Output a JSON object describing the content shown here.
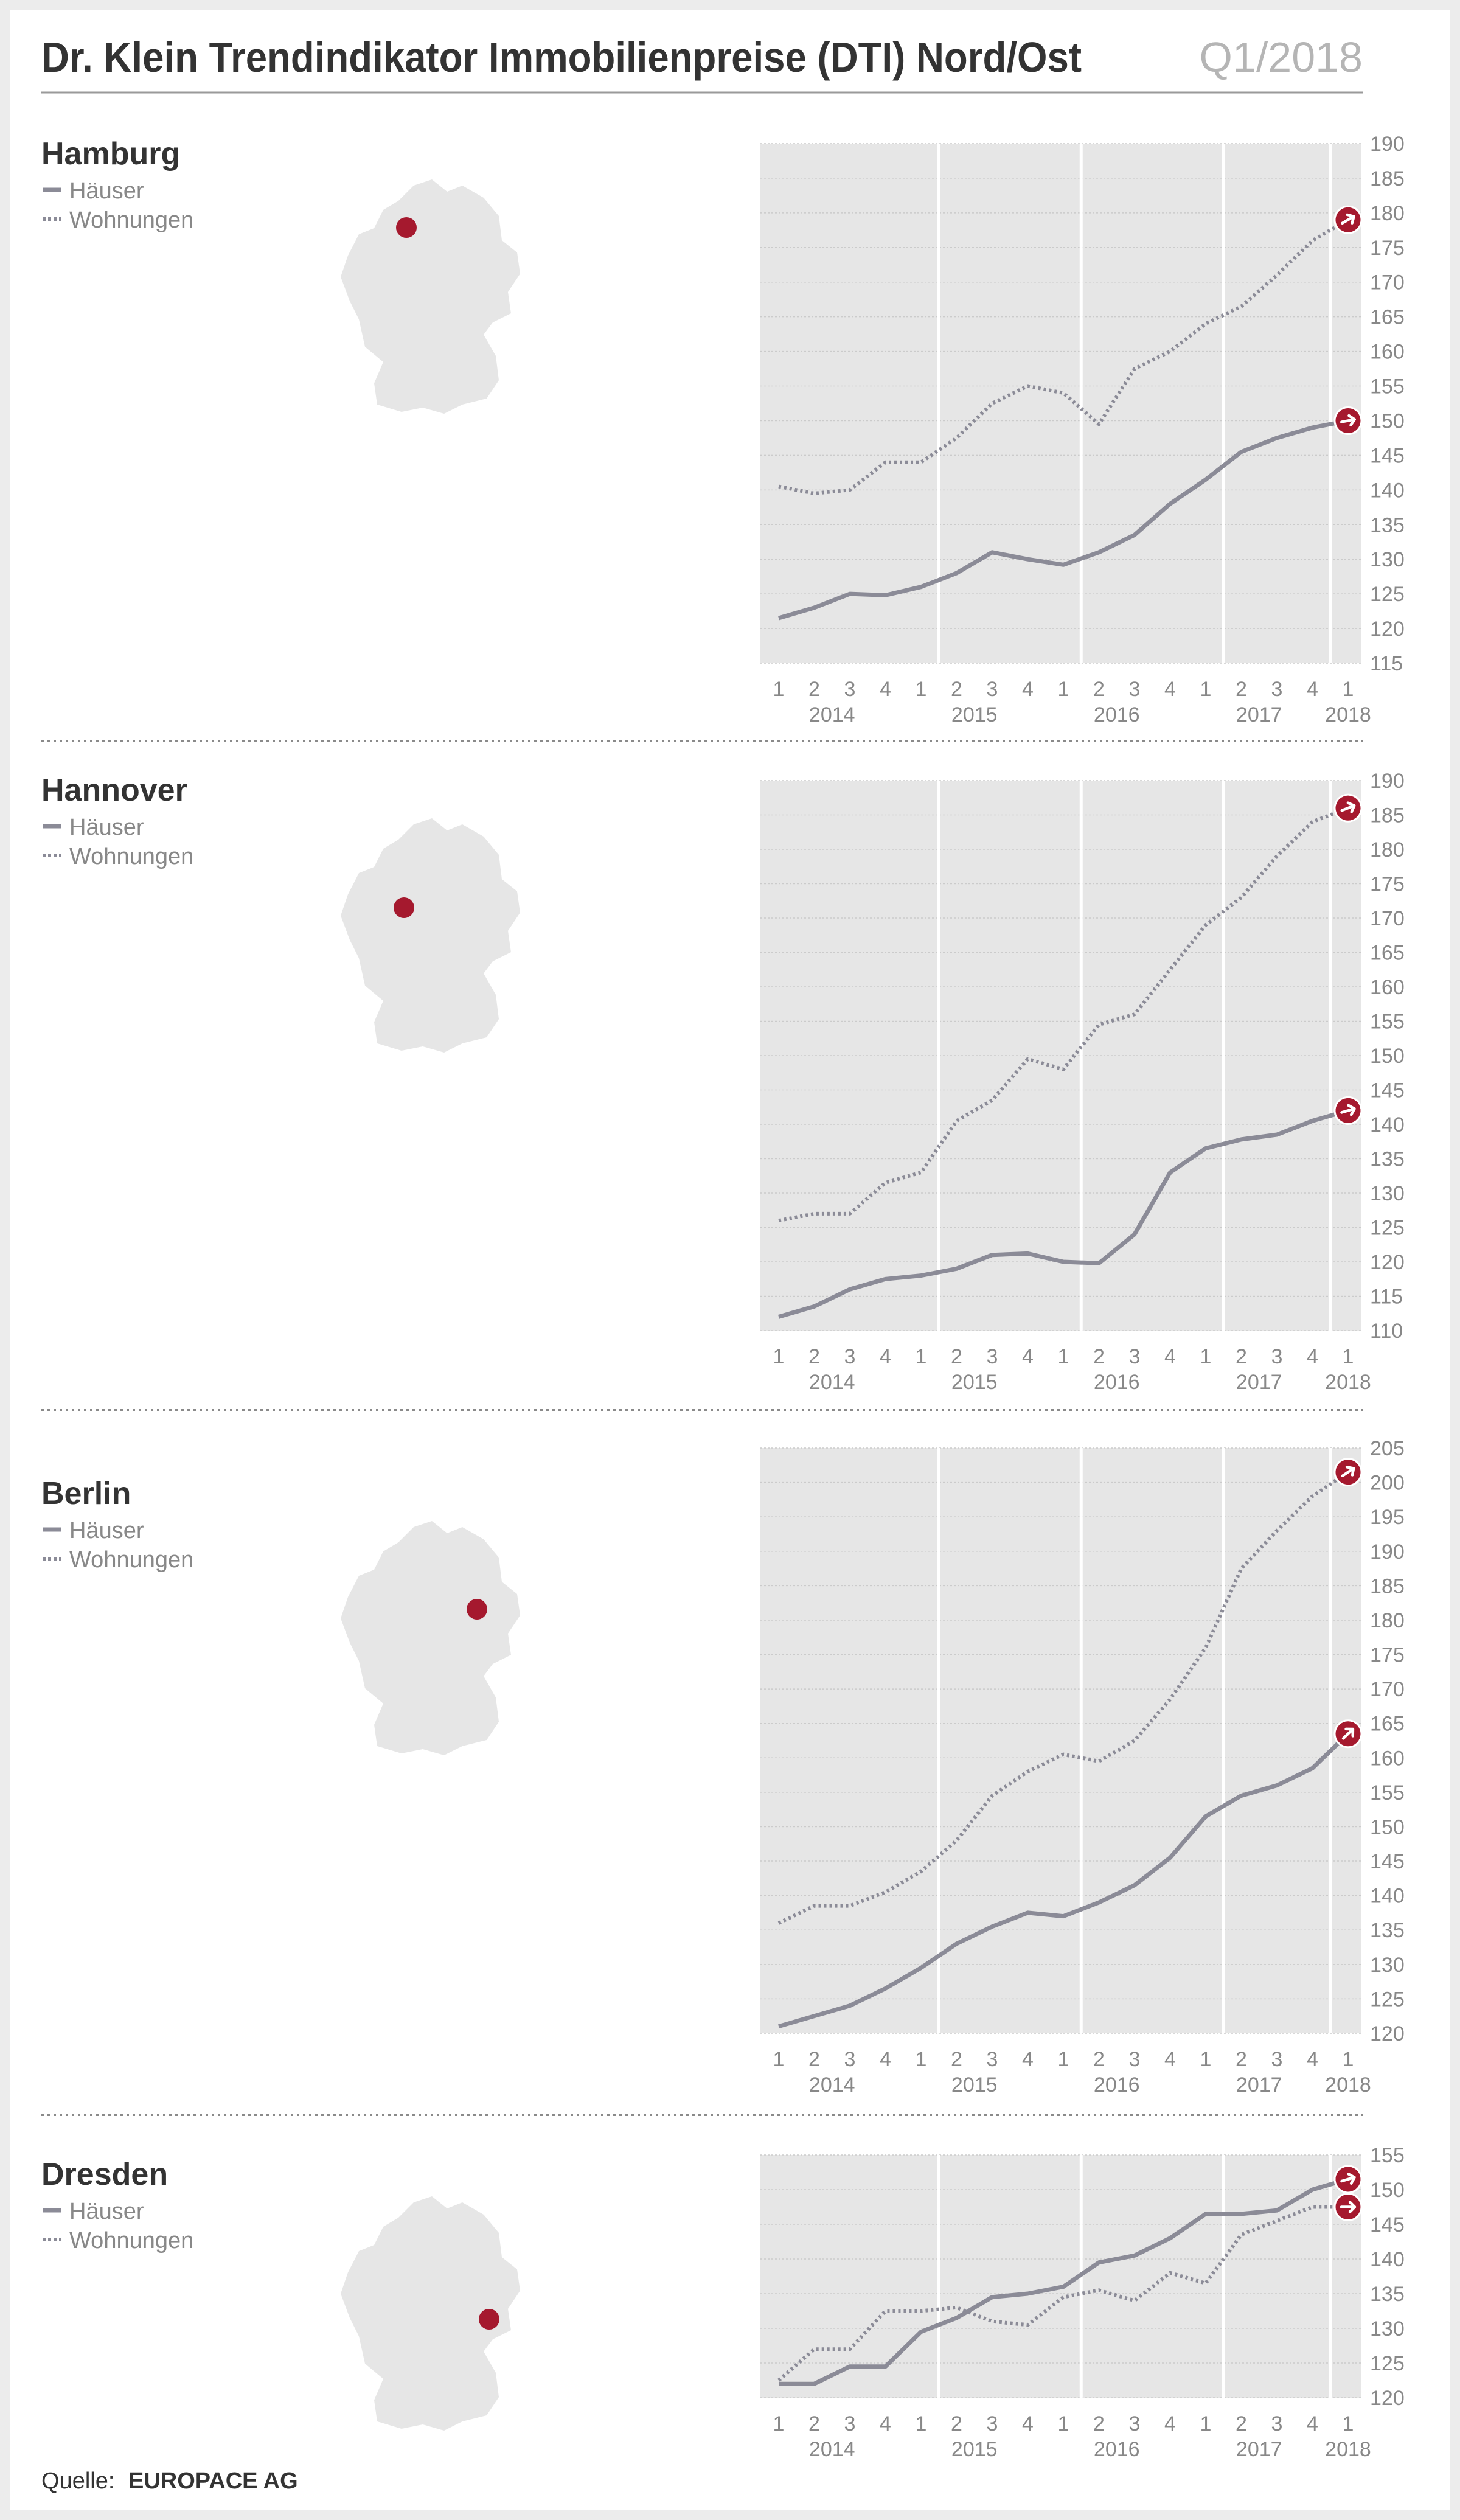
{
  "header": {
    "title": "Dr. Klein Trendindikator Immobilienpreise (DTI) Nord/Ost",
    "period": "Q1/2018"
  },
  "legend": {
    "houses": "Häuser",
    "flats": "Wohnungen"
  },
  "source": {
    "label": "Quelle:",
    "value": "EUROPACE AG"
  },
  "colors": {
    "line": "#8b8b97",
    "marker": "#a5192e",
    "plot_bg": "#e6e6e6",
    "title": "#333333",
    "axis_text": "#888888",
    "map": "#e6e6e6"
  },
  "quarter_labels": [
    "1",
    "2",
    "3",
    "4",
    "1",
    "2",
    "3",
    "4",
    "1",
    "2",
    "3",
    "4",
    "1",
    "2",
    "3",
    "4",
    "1"
  ],
  "year_labels": [
    "2014",
    "2015",
    "2016",
    "2017",
    "2018"
  ],
  "chart_data": [
    {
      "type": "line",
      "title": "Hamburg",
      "x": [
        "Q1 2014",
        "Q2 2014",
        "Q3 2014",
        "Q4 2014",
        "Q1 2015",
        "Q2 2015",
        "Q3 2015",
        "Q4 2015",
        "Q1 2016",
        "Q2 2016",
        "Q3 2016",
        "Q4 2016",
        "Q1 2017",
        "Q2 2017",
        "Q3 2017",
        "Q4 2017",
        "Q1 2018"
      ],
      "ylim": [
        115,
        190
      ],
      "yticks": [
        115,
        120,
        125,
        130,
        135,
        140,
        145,
        150,
        155,
        160,
        165,
        170,
        175,
        180,
        185,
        190
      ],
      "series": [
        {
          "name": "Häuser",
          "style": "solid",
          "values": [
            121.5,
            123,
            125,
            124.8,
            126,
            128,
            131,
            130,
            129.2,
            131,
            133.5,
            138,
            141.5,
            145.5,
            147.5,
            149,
            150
          ]
        },
        {
          "name": "Wohnungen",
          "style": "dotted",
          "values": [
            140.5,
            139.5,
            140,
            144,
            144,
            147.5,
            152.5,
            155,
            154,
            149.5,
            157.5,
            160,
            164,
            166.5,
            171,
            176,
            179
          ]
        }
      ]
    },
    {
      "type": "line",
      "title": "Hannover",
      "x": [
        "Q1 2014",
        "Q2 2014",
        "Q3 2014",
        "Q4 2014",
        "Q1 2015",
        "Q2 2015",
        "Q3 2015",
        "Q4 2015",
        "Q1 2016",
        "Q2 2016",
        "Q3 2016",
        "Q4 2016",
        "Q1 2017",
        "Q2 2017",
        "Q3 2017",
        "Q4 2017",
        "Q1 2018"
      ],
      "ylim": [
        110,
        190
      ],
      "yticks": [
        110,
        115,
        120,
        125,
        130,
        135,
        140,
        145,
        150,
        155,
        160,
        165,
        170,
        175,
        180,
        185,
        190
      ],
      "series": [
        {
          "name": "Häuser",
          "style": "solid",
          "values": [
            112,
            113.5,
            116,
            117.5,
            118,
            119,
            121,
            121.2,
            120,
            119.8,
            124,
            133,
            136.5,
            137.8,
            138.5,
            140.5,
            142
          ]
        },
        {
          "name": "Wohnungen",
          "style": "dotted",
          "values": [
            126,
            127,
            127,
            131.5,
            133,
            140.5,
            143.5,
            149.5,
            148,
            154.5,
            156,
            162.5,
            169,
            173,
            179,
            184,
            186
          ]
        }
      ]
    },
    {
      "type": "line",
      "title": "Berlin",
      "x": [
        "Q1 2014",
        "Q2 2014",
        "Q3 2014",
        "Q4 2014",
        "Q1 2015",
        "Q2 2015",
        "Q3 2015",
        "Q4 2015",
        "Q1 2016",
        "Q2 2016",
        "Q3 2016",
        "Q4 2016",
        "Q1 2017",
        "Q2 2017",
        "Q3 2017",
        "Q4 2017",
        "Q1 2018"
      ],
      "ylim": [
        120,
        205
      ],
      "yticks": [
        120,
        125,
        130,
        135,
        140,
        145,
        150,
        155,
        160,
        165,
        170,
        175,
        180,
        185,
        190,
        195,
        200,
        205
      ],
      "series": [
        {
          "name": "Häuser",
          "style": "solid",
          "values": [
            121,
            122.5,
            124,
            126.5,
            129.5,
            133,
            135.5,
            137.5,
            137,
            139,
            141.5,
            145.5,
            151.5,
            154.5,
            156,
            158.5,
            163.5
          ]
        },
        {
          "name": "Wohnungen",
          "style": "dotted",
          "values": [
            136,
            138.5,
            138.5,
            140.5,
            143.5,
            148,
            154.5,
            158,
            160.5,
            159.5,
            162.5,
            168.5,
            176,
            187.5,
            193,
            198,
            201.5
          ]
        }
      ]
    },
    {
      "type": "line",
      "title": "Dresden",
      "x": [
        "Q1 2014",
        "Q2 2014",
        "Q3 2014",
        "Q4 2014",
        "Q1 2015",
        "Q2 2015",
        "Q3 2015",
        "Q4 2015",
        "Q1 2016",
        "Q2 2016",
        "Q3 2016",
        "Q4 2016",
        "Q1 2017",
        "Q2 2017",
        "Q3 2017",
        "Q4 2017",
        "Q1 2018"
      ],
      "ylim": [
        120,
        155
      ],
      "yticks": [
        120,
        125,
        130,
        135,
        140,
        145,
        150,
        155
      ],
      "series": [
        {
          "name": "Häuser",
          "style": "solid",
          "values": [
            122,
            122,
            124.5,
            124.5,
            129.5,
            131.5,
            134.5,
            135,
            136,
            139.5,
            140.5,
            143,
            146.5,
            146.5,
            147,
            150,
            151.5
          ]
        },
        {
          "name": "Wohnungen",
          "style": "dotted",
          "values": [
            122.5,
            127,
            127,
            132.5,
            132.5,
            133,
            131,
            130.5,
            134.5,
            135.5,
            134,
            138,
            136.5,
            143.5,
            145.5,
            147.5,
            147.5
          ]
        }
      ]
    }
  ]
}
